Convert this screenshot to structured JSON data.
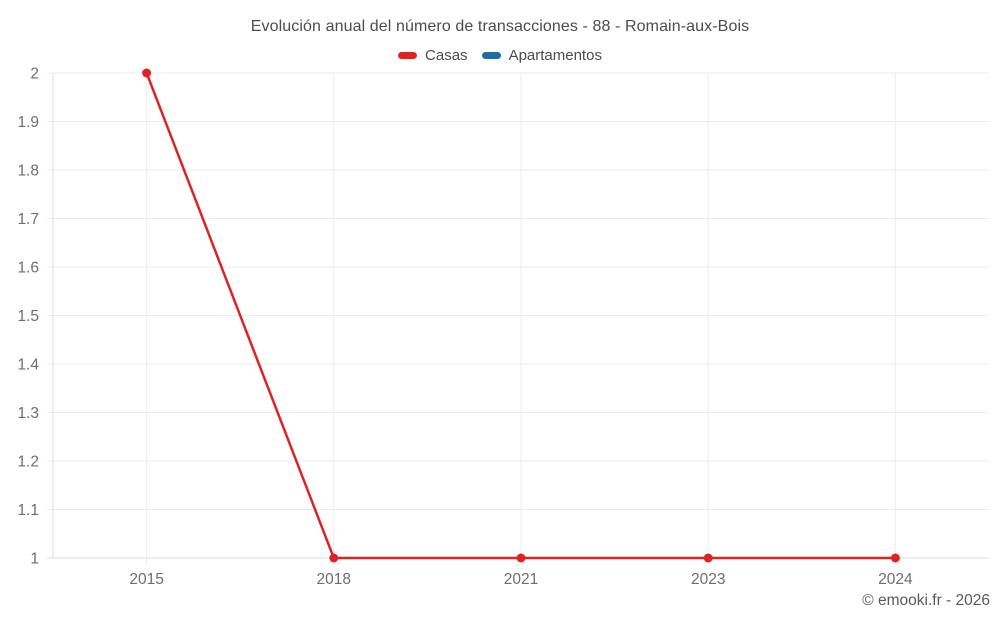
{
  "chart_data": {
    "type": "line",
    "title": "Evolución anual del número de transacciones - 88 - Romain-aux-Bois",
    "categories": [
      "2015",
      "2018",
      "2021",
      "2023",
      "2024"
    ],
    "series": [
      {
        "name": "Casas",
        "color": "#de2423",
        "values": [
          2,
          1,
          1,
          1,
          1
        ]
      },
      {
        "name": "Apartamentos",
        "color": "#1c6fa6",
        "values": [
          null,
          null,
          null,
          null,
          null
        ]
      }
    ],
    "ylim": [
      1,
      2
    ],
    "ytick_step": 0.1,
    "ytick_labels": [
      "1",
      "1.1",
      "1.2",
      "1.3",
      "1.4",
      "1.5",
      "1.6",
      "1.7",
      "1.8",
      "1.9",
      "2"
    ],
    "grid": true,
    "legend_position": "top",
    "line_width": 2.5,
    "point_radius": 4.5
  },
  "footer": {
    "credit": "© emooki.fr - 2026"
  },
  "colors": {
    "grid": "#ececec",
    "axis_border": "#dcdcdc",
    "tick_label": "#6e6e6e",
    "title_text": "#4c4c4c",
    "legend_text": "#4c4c4c",
    "credit_text": "#5a5a5a",
    "background": "#ffffff"
  }
}
